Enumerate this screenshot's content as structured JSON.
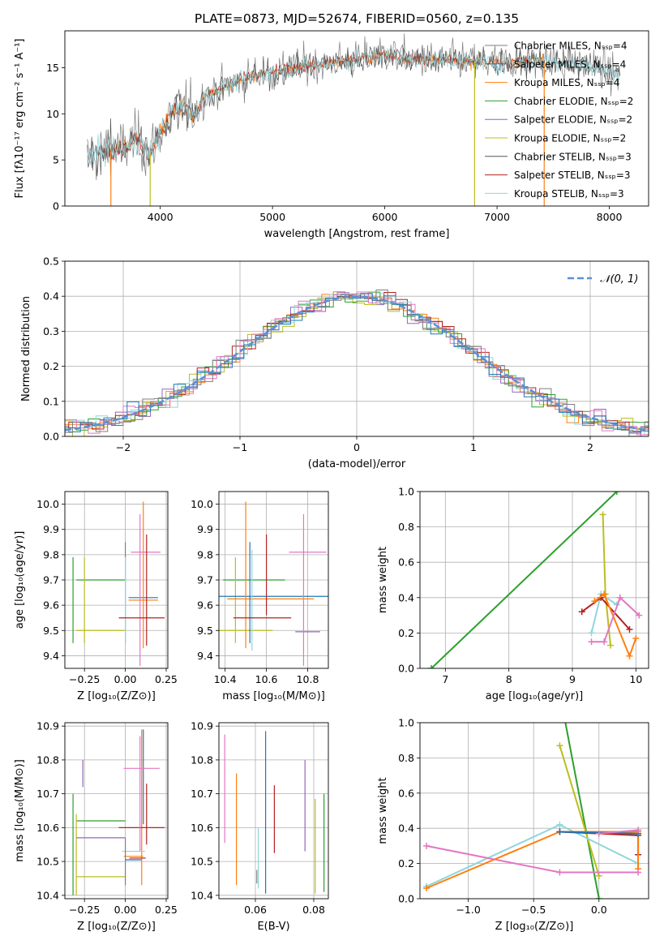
{
  "title": "PLATE=0873, MJD=52674, FIBERID=0560, z=0.135",
  "colors": {
    "chabrier_miles": "#7f7f7f",
    "salpeter_miles": "#1f77b4",
    "kroupa_miles": "#ff7f0e",
    "chabrier_elodie": "#2ca02c",
    "salpeter_elodie": "#9467bd",
    "kroupa_elodie": "#bcbd22",
    "chabrier_stelib": "#555555",
    "salpeter_stelib": "#b22222",
    "kroupa_stelib": "#8fd6dc",
    "pink": "#e377c2",
    "gaussian": "#5b8fd6"
  },
  "chart_data": [
    {
      "type": "line",
      "id": "spectrum",
      "xlabel": "wavelength [Angstrom, rest frame]",
      "ylabel": "Flux [fλ10⁻¹⁷ erg cm⁻² s⁻¹ A⁻¹]",
      "xlim": [
        3150,
        8350
      ],
      "ylim": [
        0,
        19
      ],
      "xticks": [
        4000,
        5000,
        6000,
        7000,
        8000
      ],
      "yticks": [
        0,
        5,
        10,
        15
      ],
      "grid": false,
      "legend_position": "top-right",
      "legend": [
        "Chabrier MILES, Nₛₛₚ=4",
        "Salpeter MILES, Nₛₛₚ=4",
        "Kroupa MILES, Nₛₛₚ=4",
        "Chabrier ELODIE, Nₛₛₚ=2",
        "Salpeter ELODIE, Nₛₛₚ=2",
        "Kroupa ELODIE, Nₛₛₚ=2",
        "Chabrier STELIB, Nₛₛₚ=3",
        "Salpeter STELIB, Nₛₛₚ=3",
        "Kroupa STELIB, Nₛₛₚ=3"
      ],
      "envelope": {
        "wavelength": [
          3350,
          3500,
          3700,
          3800,
          3900,
          4000,
          4100,
          4200,
          4300,
          4400,
          4600,
          4800,
          5000,
          5200,
          5500,
          5800,
          6000,
          6300,
          6600,
          7000,
          7400,
          7800,
          8100
        ],
        "flux": [
          5.3,
          6.0,
          6.5,
          7.3,
          5.5,
          8.0,
          10.0,
          11.0,
          10.0,
          12.0,
          13.0,
          14.0,
          14.5,
          15.0,
          15.5,
          16.0,
          16.5,
          15.8,
          15.8,
          15.5,
          15.8,
          15.2,
          14.2
        ]
      },
      "drops": [
        {
          "wavelength": 3560,
          "color": "kroupa_miles"
        },
        {
          "wavelength": 3910,
          "color": "kroupa_elodie"
        },
        {
          "wavelength": 6800,
          "color": "kroupa_elodie"
        },
        {
          "wavelength": 7420,
          "color": "kroupa_miles"
        }
      ]
    },
    {
      "type": "line",
      "id": "residual-histogram",
      "xlabel": "(data-model)/error",
      "ylabel": "Normed distribution",
      "xlim": [
        -2.5,
        2.5
      ],
      "ylim": [
        0,
        0.5
      ],
      "xticks": [
        -2,
        -1,
        0,
        1,
        2
      ],
      "yticks": [
        0.0,
        0.1,
        0.2,
        0.3,
        0.4,
        0.5
      ],
      "grid": true,
      "legend_position": "top-right",
      "gaussian_label": "𝒩(0, 1)",
      "bin_width": 0.1
    },
    {
      "type": "scatter",
      "id": "age-vs-Z",
      "xlabel": "Z [log₁₀(Z/Z⊙)]",
      "ylabel": "age [log₁₀(age/yr)]",
      "xlim": [
        -0.37,
        0.26
      ],
      "ylim": [
        9.35,
        10.05
      ],
      "xticks": [
        -0.25,
        0.0,
        0.25
      ],
      "xticklabels": [
        "−0.25",
        "0.00",
        "0.25"
      ],
      "yticks": [
        9.4,
        9.5,
        9.6,
        9.7,
        9.8,
        9.9,
        10.0
      ],
      "points": [
        {
          "c": "chabrier_elodie",
          "x": -0.15,
          "xe": 0.15,
          "y": 9.7,
          "ye": 0.0
        },
        {
          "c": "chabrier_elodie",
          "x": -0.32,
          "xe": 0.0,
          "y": 9.62,
          "ye": 0.17
        },
        {
          "c": "kroupa_elodie",
          "x": -0.15,
          "xe": 0.15,
          "y": 9.5,
          "ye": 0.0
        },
        {
          "c": "kroupa_elodie",
          "x": -0.25,
          "xe": 0.0,
          "y": 9.62,
          "ye": 0.17
        },
        {
          "c": "salpeter_miles",
          "x": 0.11,
          "xe": 0.09,
          "y": 9.63,
          "ye": 0.0
        },
        {
          "c": "kroupa_miles",
          "x": 0.11,
          "xe": 0.09,
          "y": 9.62,
          "ye": 0.0
        },
        {
          "c": "kroupa_miles",
          "x": 0.11,
          "xe": 0.0,
          "y": 9.72,
          "ye": 0.29
        },
        {
          "c": "pink",
          "x": 0.125,
          "xe": 0.09,
          "y": 9.81,
          "ye": 0.0
        },
        {
          "c": "pink",
          "x": 0.09,
          "xe": 0.0,
          "y": 9.66,
          "ye": 0.3
        },
        {
          "c": "chabrier_miles",
          "x": 0.0,
          "xe": 0.0,
          "y": 9.65,
          "ye": 0.2
        },
        {
          "c": "kroupa_stelib",
          "x": 0.0,
          "xe": 0.0,
          "y": 9.62,
          "ye": 0.17
        },
        {
          "c": "salpeter_stelib",
          "x": 0.13,
          "xe": 0.0,
          "y": 9.66,
          "ye": 0.22
        },
        {
          "c": "salpeter_stelib",
          "x": 0.1,
          "xe": 0.14,
          "y": 9.55,
          "ye": 0.0
        }
      ]
    },
    {
      "type": "scatter",
      "id": "age-vs-mass",
      "xlabel": "mass [log₁₀(M/M⊙)]",
      "ylabel": "",
      "xlim": [
        10.37,
        10.9
      ],
      "ylim": [
        9.35,
        10.05
      ],
      "xticks": [
        10.4,
        10.6,
        10.8
      ],
      "yticks": [
        9.4,
        9.5,
        9.6,
        9.7,
        9.8,
        9.9,
        10.0
      ],
      "points": [
        {
          "c": "chabrier_elodie",
          "x": 10.54,
          "xe": 0.15,
          "y": 9.7,
          "ye": 0.0
        },
        {
          "c": "kroupa_elodie",
          "x": 10.45,
          "xe": 0.0,
          "y": 9.62,
          "ye": 0.17
        },
        {
          "c": "kroupa_elodie",
          "x": 10.5,
          "xe": 0.13,
          "y": 9.5,
          "ye": 0.0
        },
        {
          "c": "salpeter_miles",
          "x": 10.63,
          "xe": 0.27,
          "y": 9.635,
          "ye": 0.0
        },
        {
          "c": "kroupa_miles",
          "x": 10.62,
          "xe": 0.21,
          "y": 9.625,
          "ye": 0.0
        },
        {
          "c": "kroupa_miles",
          "x": 10.5,
          "xe": 0.0,
          "y": 9.72,
          "ye": 0.29
        },
        {
          "c": "salpeter_miles",
          "x": 10.52,
          "xe": 0.0,
          "y": 9.65,
          "ye": 0.2
        },
        {
          "c": "kroupa_stelib",
          "x": 10.53,
          "xe": 0.0,
          "y": 9.62,
          "ye": 0.2
        },
        {
          "c": "salpeter_stelib",
          "x": 10.6,
          "xe": 0.0,
          "y": 9.72,
          "ye": 0.16
        },
        {
          "c": "salpeter_stelib",
          "x": 10.58,
          "xe": 0.14,
          "y": 9.55,
          "ye": 0.0
        },
        {
          "c": "salpeter_elodie",
          "x": 10.8,
          "xe": 0.06,
          "y": 9.495,
          "ye": 0.0
        },
        {
          "c": "pink",
          "x": 10.78,
          "xe": 0.0,
          "y": 9.66,
          "ye": 0.3
        },
        {
          "c": "pink",
          "x": 10.8,
          "xe": 0.09,
          "y": 9.81,
          "ye": 0.0
        }
      ]
    },
    {
      "type": "line",
      "id": "mass-weight-vs-age",
      "xlabel": "age [log₁₀(age/yr)]",
      "ylabel": "mass weight",
      "xlim": [
        6.6,
        10.2
      ],
      "ylim": [
        0,
        1
      ],
      "xticks": [
        7,
        8,
        9,
        10
      ],
      "yticks": [
        0.0,
        0.2,
        0.4,
        0.6,
        0.8,
        1.0
      ],
      "grid": true,
      "series": [
        {
          "c": "chabrier_elodie",
          "x": [
            6.78,
            9.7
          ],
          "y": [
            0.0,
            1.0
          ]
        },
        {
          "c": "kroupa_elodie",
          "x": [
            9.48,
            9.52,
            9.6
          ],
          "y": [
            0.87,
            0.42,
            0.13
          ]
        },
        {
          "c": "kroupa_stelib",
          "x": [
            9.3,
            9.45,
            9.7
          ],
          "y": [
            0.2,
            0.42,
            0.36
          ]
        },
        {
          "c": "salpeter_stelib",
          "x": [
            9.15,
            9.45,
            9.9
          ],
          "y": [
            0.32,
            0.4,
            0.22
          ]
        },
        {
          "c": "kroupa_miles",
          "x": [
            9.35,
            9.5,
            9.9,
            10.0
          ],
          "y": [
            0.38,
            0.42,
            0.07,
            0.17
          ]
        },
        {
          "c": "pink",
          "x": [
            9.3,
            9.5,
            9.75,
            10.05
          ],
          "y": [
            0.15,
            0.15,
            0.4,
            0.3
          ]
        }
      ]
    },
    {
      "type": "scatter",
      "id": "mass-vs-Z",
      "xlabel": "Z [log₁₀(Z/Z⊙)]",
      "ylabel": "mass [log₁₀(M/M⊙)]",
      "xlim": [
        -0.37,
        0.26
      ],
      "ylim": [
        10.39,
        10.91
      ],
      "xticks": [
        -0.25,
        0.0,
        0.25
      ],
      "xticklabels": [
        "−0.25",
        "0.00",
        "0.25"
      ],
      "yticks": [
        10.4,
        10.5,
        10.6,
        10.7,
        10.8,
        10.9
      ],
      "points": [
        {
          "c": "chabrier_elodie",
          "x": -0.15,
          "xe": 0.15,
          "y": 10.62,
          "ye": 0.0
        },
        {
          "c": "chabrier_elodie",
          "x": -0.32,
          "xe": 0.0,
          "y": 10.55,
          "ye": 0.15
        },
        {
          "c": "kroupa_elodie",
          "x": -0.15,
          "xe": 0.15,
          "y": 10.455,
          "ye": 0.0
        },
        {
          "c": "kroupa_elodie",
          "x": -0.3,
          "xe": 0.0,
          "y": 10.52,
          "ye": 0.12
        },
        {
          "c": "salpeter_elodie",
          "x": -0.15,
          "xe": 0.15,
          "y": 10.57,
          "ye": 0.0
        },
        {
          "c": "salpeter_elodie",
          "x": -0.26,
          "xe": 0.0,
          "y": 10.76,
          "ye": 0.04
        },
        {
          "c": "salpeter_miles",
          "x": 0.05,
          "xe": 0.05,
          "y": 10.505,
          "ye": 0.0
        },
        {
          "c": "salpeter_miles",
          "x": 0.11,
          "xe": 0.0,
          "y": 10.75,
          "ye": 0.14
        },
        {
          "c": "kroupa_miles",
          "x": 0.1,
          "xe": 0.0,
          "y": 10.66,
          "ye": 0.23
        },
        {
          "c": "kroupa_miles",
          "x": 0.05,
          "xe": 0.06,
          "y": 10.515,
          "ye": 0.0
        },
        {
          "c": "salpeter_stelib",
          "x": 0.075,
          "xe": 0.05,
          "y": 10.51,
          "ye": 0.0
        },
        {
          "c": "salpeter_stelib",
          "x": 0.13,
          "xe": 0.0,
          "y": 10.64,
          "ye": 0.09
        },
        {
          "c": "salpeter_stelib",
          "x": 0.1,
          "xe": 0.14,
          "y": 10.6,
          "ye": 0.0
        },
        {
          "c": "pink",
          "x": 0.09,
          "xe": 0.0,
          "y": 10.7,
          "ye": 0.17
        },
        {
          "c": "pink",
          "x": 0.1,
          "xe": 0.11,
          "y": 10.775,
          "ye": 0.0
        },
        {
          "c": "kroupa_stelib",
          "x": 0.05,
          "xe": 0.07,
          "y": 10.53,
          "ye": 0.0
        },
        {
          "c": "chabrier_miles",
          "x": 0.0,
          "xe": 0.0,
          "y": 10.5,
          "ye": 0.07
        }
      ]
    },
    {
      "type": "scatter",
      "id": "mass-vs-ebv",
      "xlabel": "E(B-V)",
      "ylabel": "",
      "xlim": [
        0.0475,
        0.085
      ],
      "ylim": [
        10.39,
        10.91
      ],
      "xticks": [
        0.06,
        0.08
      ],
      "yticks": [
        10.4,
        10.5,
        10.6,
        10.7,
        10.8,
        10.9
      ],
      "points": [
        {
          "c": "pink",
          "x": 0.0495,
          "y": 10.715,
          "ye": 0.16
        },
        {
          "c": "kroupa_miles",
          "x": 0.0535,
          "y": 10.595,
          "ye": 0.165
        },
        {
          "c": "chabrier_miles",
          "x": 0.0605,
          "y": 10.455,
          "ye": 0.02
        },
        {
          "c": "kroupa_stelib",
          "x": 0.061,
          "y": 10.51,
          "ye": 0.09
        },
        {
          "c": "salpeter_miles",
          "x": 0.0635,
          "y": 10.645,
          "ye": 0.24
        },
        {
          "c": "salpeter_stelib",
          "x": 0.0665,
          "y": 10.625,
          "ye": 0.1
        },
        {
          "c": "salpeter_elodie",
          "x": 0.077,
          "y": 10.665,
          "ye": 0.135
        },
        {
          "c": "kroupa_elodie",
          "x": 0.0805,
          "y": 10.545,
          "ye": 0.14
        },
        {
          "c": "chabrier_elodie",
          "x": 0.0835,
          "y": 10.555,
          "ye": 0.145
        }
      ]
    },
    {
      "type": "line",
      "id": "mass-weight-vs-Z",
      "xlabel": "Z [log₁₀(Z/Z⊙)]",
      "ylabel": "mass weight",
      "xlim": [
        -1.37,
        0.38
      ],
      "ylim": [
        0,
        1
      ],
      "xticks": [
        -1.0,
        -0.5,
        0.0
      ],
      "xticklabels": [
        "−1.0",
        "−0.5",
        "0.0"
      ],
      "yticks": [
        0.0,
        0.2,
        0.4,
        0.6,
        0.8,
        1.0
      ],
      "grid": true,
      "series": [
        {
          "c": "chabrier_elodie",
          "x": [
            -0.27,
            0.0
          ],
          "y": [
            1.05,
            0.0
          ]
        },
        {
          "c": "kroupa_elodie",
          "x": [
            -0.3,
            0.0
          ],
          "y": [
            0.87,
            0.13
          ]
        },
        {
          "c": "kroupa_stelib",
          "x": [
            -1.32,
            -0.3,
            0.3
          ],
          "y": [
            0.07,
            0.42,
            0.2
          ]
        },
        {
          "c": "salpeter_stelib",
          "x": [
            -0.3,
            0.3,
            0.3
          ],
          "y": [
            0.38,
            0.36,
            0.25
          ]
        },
        {
          "c": "kroupa_miles",
          "x": [
            -1.32,
            -0.3,
            0.3,
            0.3
          ],
          "y": [
            0.06,
            0.38,
            0.38,
            0.17
          ]
        },
        {
          "c": "salpeter_miles",
          "x": [
            -0.3,
            0.3
          ],
          "y": [
            0.38,
            0.37
          ]
        },
        {
          "c": "pink",
          "x": [
            -1.32,
            -0.3,
            0.3
          ],
          "y": [
            0.3,
            0.15,
            0.15
          ]
        },
        {
          "c": "pink",
          "x": [
            0.0,
            0.3
          ],
          "y": [
            0.37,
            0.39
          ]
        }
      ]
    }
  ]
}
